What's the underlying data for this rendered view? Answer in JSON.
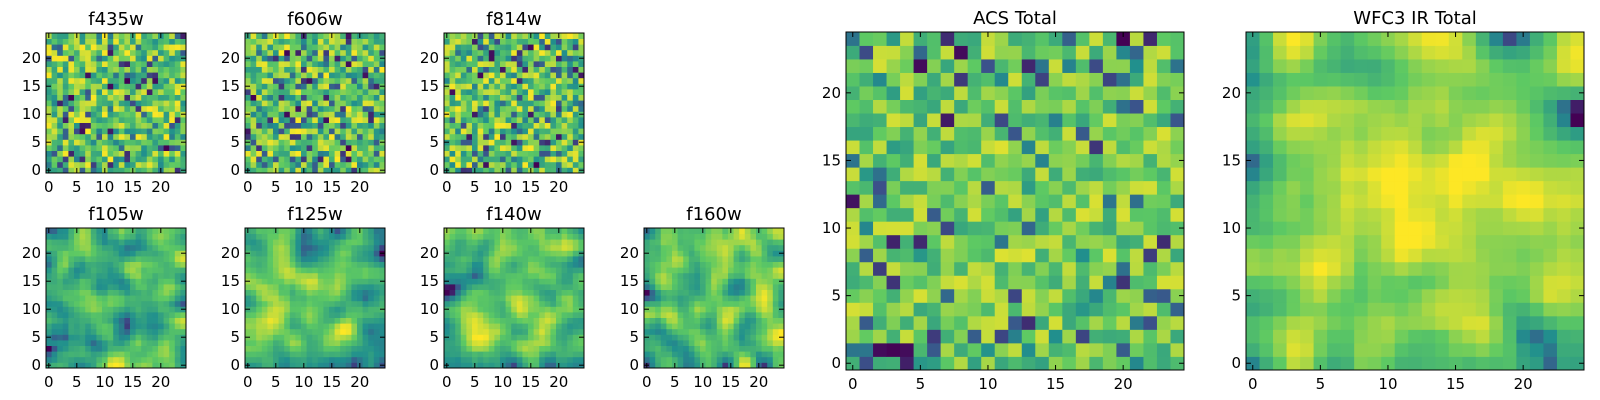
{
  "figure": {
    "colormap": "viridis",
    "colormap_stops": [
      "#440154",
      "#3b528b",
      "#21908d",
      "#5dc963",
      "#fde725"
    ],
    "grid": false
  },
  "chart_data": [
    {
      "type": "heatmap",
      "title": "f435w",
      "xlabel": "",
      "ylabel": "",
      "grid_size": [
        25,
        25
      ],
      "xlim": [
        -0.5,
        24.5
      ],
      "ylim": [
        -0.5,
        24.5
      ],
      "xticks": [
        0,
        5,
        10,
        15,
        20
      ],
      "yticks": [
        0,
        5,
        10,
        15,
        20
      ],
      "value_range": [
        0,
        1
      ],
      "texture": "uniform-noise",
      "seed": 11,
      "smooth": 0,
      "level_min": 0.5,
      "level_max": 0.85,
      "vignette": 0
    },
    {
      "type": "heatmap",
      "title": "f606w",
      "xlabel": "",
      "ylabel": "",
      "grid_size": [
        25,
        25
      ],
      "xlim": [
        -0.5,
        24.5
      ],
      "ylim": [
        -0.5,
        24.5
      ],
      "xticks": [
        0,
        5,
        10,
        15,
        20
      ],
      "yticks": [
        0,
        5,
        10,
        15,
        20
      ],
      "value_range": [
        0,
        1
      ],
      "texture": "uniform-noise",
      "seed": 23,
      "smooth": 0,
      "level_min": 0.5,
      "level_max": 0.85,
      "vignette": 0
    },
    {
      "type": "heatmap",
      "title": "f814w",
      "xlabel": "",
      "ylabel": "",
      "grid_size": [
        25,
        25
      ],
      "xlim": [
        -0.5,
        24.5
      ],
      "ylim": [
        -0.5,
        24.5
      ],
      "xticks": [
        0,
        5,
        10,
        15,
        20
      ],
      "yticks": [
        0,
        5,
        10,
        15,
        20
      ],
      "value_range": [
        0,
        1
      ],
      "texture": "uniform-noise",
      "seed": 37,
      "smooth": 0,
      "level_min": 0.5,
      "level_max": 0.85,
      "vignette": 0
    },
    {
      "type": "heatmap",
      "title": "f105w",
      "xlabel": "",
      "ylabel": "",
      "grid_size": [
        25,
        25
      ],
      "xlim": [
        -0.5,
        24.5
      ],
      "ylim": [
        -0.5,
        24.5
      ],
      "xticks": [
        0,
        5,
        10,
        15,
        20
      ],
      "yticks": [
        0,
        5,
        10,
        15,
        20
      ],
      "value_range": [
        0,
        1
      ],
      "texture": "smooth-noise",
      "seed": 41,
      "smooth": 2,
      "level_min": 0.45,
      "level_max": 0.85,
      "vignette": 0.15
    },
    {
      "type": "heatmap",
      "title": "f125w",
      "xlabel": "",
      "ylabel": "",
      "grid_size": [
        25,
        25
      ],
      "xlim": [
        -0.5,
        24.5
      ],
      "ylim": [
        -0.5,
        24.5
      ],
      "xticks": [
        0,
        5,
        10,
        15,
        20
      ],
      "yticks": [
        0,
        5,
        10,
        15,
        20
      ],
      "value_range": [
        0,
        1
      ],
      "texture": "smooth-noise",
      "seed": 53,
      "smooth": 2,
      "level_min": 0.45,
      "level_max": 0.85,
      "vignette": 0.15
    },
    {
      "type": "heatmap",
      "title": "f140w",
      "xlabel": "",
      "ylabel": "",
      "grid_size": [
        25,
        25
      ],
      "xlim": [
        -0.5,
        24.5
      ],
      "ylim": [
        -0.5,
        24.5
      ],
      "xticks": [
        0,
        5,
        10,
        15,
        20
      ],
      "yticks": [
        0,
        5,
        10,
        15,
        20
      ],
      "value_range": [
        0,
        1
      ],
      "texture": "smooth-noise",
      "seed": 67,
      "smooth": 2,
      "level_min": 0.45,
      "level_max": 0.85,
      "vignette": 0.15
    },
    {
      "type": "heatmap",
      "title": "f160w",
      "xlabel": "",
      "ylabel": "",
      "grid_size": [
        25,
        25
      ],
      "xlim": [
        -0.5,
        24.5
      ],
      "ylim": [
        -0.5,
        24.5
      ],
      "xticks": [
        0,
        5,
        10,
        15,
        20
      ],
      "yticks": [
        0,
        5,
        10,
        15,
        20
      ],
      "value_range": [
        0,
        1
      ],
      "texture": "smooth-noise",
      "seed": 79,
      "smooth": 2,
      "level_min": 0.45,
      "level_max": 0.85,
      "vignette": 0.15
    },
    {
      "type": "heatmap",
      "title": "ACS Total",
      "xlabel": "",
      "ylabel": "",
      "grid_size": [
        25,
        25
      ],
      "xlim": [
        -0.5,
        24.5
      ],
      "ylim": [
        -0.5,
        24.5
      ],
      "xticks": [
        0,
        5,
        10,
        15,
        20
      ],
      "yticks": [
        0,
        5,
        10,
        15,
        20
      ],
      "value_range": [
        0,
        1
      ],
      "texture": "mild-noise",
      "seed": 97,
      "smooth": 0,
      "level_min": 0.6,
      "level_max": 0.8,
      "vignette": 0.05
    },
    {
      "type": "heatmap",
      "title": "WFC3 IR Total",
      "xlabel": "",
      "ylabel": "",
      "grid_size": [
        25,
        25
      ],
      "xlim": [
        -0.5,
        24.5
      ],
      "ylim": [
        -0.5,
        24.5
      ],
      "xticks": [
        0,
        5,
        10,
        15,
        20
      ],
      "yticks": [
        0,
        5,
        10,
        15,
        20
      ],
      "value_range": [
        0,
        1
      ],
      "texture": "centered-blob",
      "seed": 113,
      "smooth": 2,
      "level_min": 0.55,
      "level_max": 0.9,
      "vignette": 0.45
    }
  ]
}
